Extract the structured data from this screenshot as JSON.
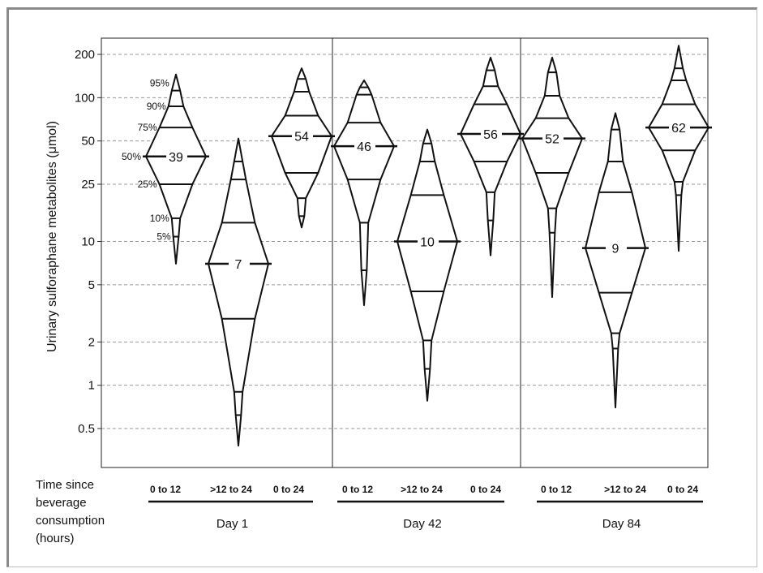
{
  "chart_data": {
    "type": "violin",
    "ylabel": "Urinary sulforaphane metabolites (μmol)",
    "yscale": "log",
    "ylim": [
      0.35,
      240
    ],
    "yticks": [
      0.5,
      1,
      2,
      5,
      10,
      25,
      50,
      100,
      200
    ],
    "ytick_labels": [
      "0.5",
      "1",
      "2",
      "5",
      "10",
      "25",
      "50",
      "100",
      "200"
    ],
    "grid": "horizontal dashed",
    "x_title_lines": [
      "Time since",
      "beverage",
      "consumption",
      "(hours)"
    ],
    "percentile_labels": [
      "95%",
      "90%",
      "75%",
      "50%",
      "25%",
      "10%",
      "5%"
    ],
    "groups": [
      {
        "day": "Day 1",
        "categories": [
          {
            "label": "0 to 12",
            "median": 39,
            "min": 7,
            "p5": 10.8,
            "p10": 14.5,
            "p25": 25,
            "p75": 62,
            "p90": 87,
            "p95": 112,
            "max": 145
          },
          {
            "label": ">12 to 24",
            "median": 7,
            "min": 0.38,
            "p5": 0.62,
            "p10": 0.9,
            "p25": 2.9,
            "p75": 13.5,
            "p90": 27,
            "p95": 36,
            "max": 52
          },
          {
            "label": "0 to 24",
            "median": 54,
            "min": 12.5,
            "p5": 15,
            "p10": 20,
            "p25": 30,
            "p75": 75,
            "p90": 110,
            "p95": 135,
            "max": 160
          }
        ]
      },
      {
        "day": "Day 42",
        "categories": [
          {
            "label": "0 to 12",
            "median": 46,
            "min": 3.6,
            "p5": 6.3,
            "p10": 13.5,
            "p25": 27,
            "p75": 67,
            "p90": 105,
            "p95": 118,
            "max": 132
          },
          {
            "label": ">12 to 24",
            "median": 10,
            "min": 0.78,
            "p5": 1.3,
            "p10": 2.05,
            "p25": 4.5,
            "p75": 21,
            "p90": 36,
            "p95": 48,
            "max": 60
          },
          {
            "label": "0 to 24",
            "median": 56,
            "min": 8,
            "p5": 14,
            "p10": 22,
            "p25": 36,
            "p75": 90,
            "p90": 120,
            "p95": 155,
            "max": 190
          }
        ]
      },
      {
        "day": "Day 84",
        "categories": [
          {
            "label": "0 to 12",
            "median": 52,
            "min": 4.1,
            "p5": 11.5,
            "p10": 17,
            "p25": 30,
            "p75": 72,
            "p90": 103,
            "p95": 150,
            "max": 190
          },
          {
            "label": ">12 to 24",
            "median": 9,
            "min": 0.7,
            "p5": 1.8,
            "p10": 2.3,
            "p25": 4.4,
            "p75": 22,
            "p90": 36,
            "p95": 60,
            "max": 78
          },
          {
            "label": "0 to 24",
            "median": 62,
            "min": 8.6,
            "p5": 21,
            "p10": 26,
            "p25": 43,
            "p75": 90,
            "p90": 132,
            "p95": 160,
            "max": 230
          }
        ]
      }
    ]
  }
}
